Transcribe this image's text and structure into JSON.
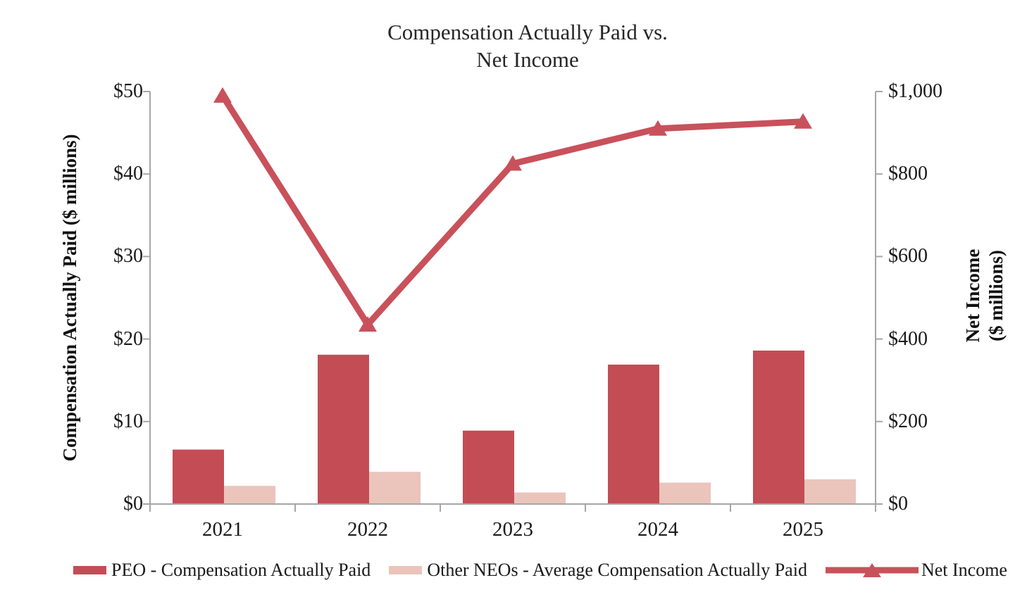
{
  "chart_data": {
    "type": "combo-bar-line",
    "title": "Compensation Actually Paid vs. Net Income",
    "title_line1": "Compensation Actually Paid vs.",
    "title_line2": "Net Income",
    "categories": [
      "2021",
      "2022",
      "2023",
      "2024",
      "2025"
    ],
    "series": [
      {
        "name": "PEO - Compensation Actually Paid",
        "type": "bar",
        "axis": "left",
        "color": "#C44C55",
        "values": [
          6.6,
          18.1,
          8.9,
          16.9,
          18.6
        ]
      },
      {
        "name": "Other NEOs - Average Compensation Actually Paid",
        "type": "bar",
        "axis": "left",
        "color": "#EBC4BB",
        "values": [
          2.2,
          3.9,
          1.4,
          2.6,
          3.0
        ]
      },
      {
        "name": "Net Income",
        "type": "line",
        "axis": "right",
        "color": "#C9515B",
        "marker": "triangle-up",
        "values": [
          990,
          435,
          825,
          910,
          927
        ]
      }
    ],
    "left_axis": {
      "label": "Compensation Actually Paid ($ millions)",
      "range": [
        0,
        50
      ],
      "ticks": [
        0,
        10,
        20,
        30,
        40,
        50
      ],
      "tick_labels": [
        "$0",
        "$10",
        "$20",
        "$30",
        "$40",
        "$50"
      ]
    },
    "right_axis": {
      "label_line1": "Net Income",
      "label_line2": "($ millions)",
      "range": [
        0,
        1000
      ],
      "ticks": [
        0,
        200,
        400,
        600,
        800,
        1000
      ],
      "tick_labels": [
        "$0",
        "$200",
        "$400",
        "$600",
        "$800",
        "$1,000"
      ]
    },
    "grid": false,
    "legend_position": "bottom",
    "axis_color": "#A6A6A6"
  }
}
